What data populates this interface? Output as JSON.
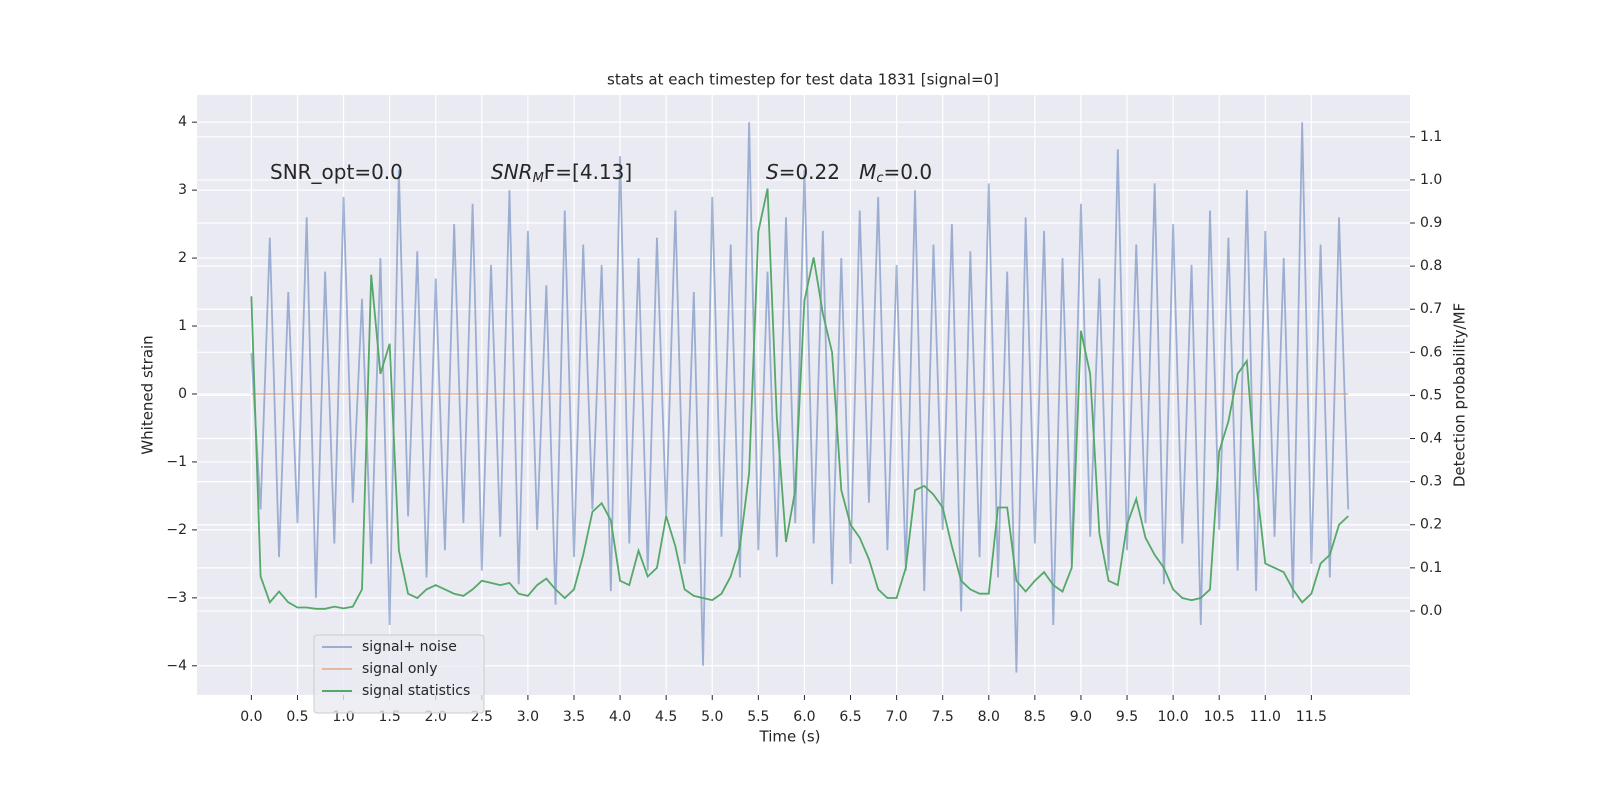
{
  "chart_data": {
    "type": "line",
    "title": "stats at each timestep for test data 1831 [signal=0]",
    "xlabel": "Time (s)",
    "ylabel": "Whitened strain",
    "y2label": "Detection probability/MF",
    "annotations": [
      {
        "parts": [
          "SNR_opt=0.0"
        ]
      },
      {
        "parts": [
          "SNR",
          "M",
          "F=[4.13]"
        ]
      },
      {
        "parts": [
          "S",
          "=0.22   ",
          "M",
          "c",
          "=0.0"
        ]
      }
    ],
    "x": [
      0,
      0.1,
      0.2,
      0.3,
      0.4,
      0.5,
      0.6,
      0.7,
      0.8,
      0.9,
      1,
      1.1,
      1.2,
      1.3,
      1.4,
      1.5,
      1.6,
      1.7,
      1.8,
      1.9,
      2,
      2.1,
      2.2,
      2.3,
      2.4,
      2.5,
      2.6,
      2.7,
      2.8,
      2.9,
      3,
      3.1,
      3.2,
      3.3,
      3.4,
      3.5,
      3.6,
      3.7,
      3.8,
      3.9,
      4,
      4.1,
      4.2,
      4.3,
      4.4,
      4.5,
      4.6,
      4.7,
      4.8,
      4.9,
      5,
      5.1,
      5.2,
      5.3,
      5.4,
      5.5,
      5.6,
      5.7,
      5.8,
      5.9,
      6,
      6.1,
      6.2,
      6.3,
      6.4,
      6.5,
      6.6,
      6.7,
      6.8,
      6.9,
      7,
      7.1,
      7.2,
      7.3,
      7.4,
      7.5,
      7.6,
      7.7,
      7.8,
      7.9,
      8,
      8.1,
      8.2,
      8.3,
      8.4,
      8.5,
      8.6,
      8.7,
      8.8,
      8.9,
      9,
      9.1,
      9.2,
      9.3,
      9.4,
      9.5,
      9.6,
      9.7,
      9.8,
      9.9,
      10,
      10.1,
      10.2,
      10.3,
      10.4,
      10.5,
      10.6,
      10.7,
      10.8,
      10.9,
      11,
      11.1,
      11.2,
      11.3,
      11.4,
      11.5,
      11.6,
      11.7,
      11.8,
      11.9
    ],
    "series": [
      {
        "name": "signal+ noise",
        "color": "#4c72b0",
        "opacity": 0.5,
        "values": [
          0.6,
          -1.7,
          2.3,
          -2.4,
          1.5,
          -1.9,
          2.6,
          -3.0,
          1.8,
          -2.2,
          2.9,
          -1.6,
          1.4,
          -2.5,
          2.0,
          -3.4,
          3.3,
          -1.8,
          2.1,
          -2.7,
          1.7,
          -2.3,
          2.5,
          -1.9,
          2.8,
          -2.6,
          1.9,
          -2.1,
          3.0,
          -2.8,
          2.4,
          -2.0,
          1.6,
          -3.1,
          2.7,
          -2.4,
          2.2,
          -1.7,
          1.9,
          -2.9,
          3.5,
          -2.2,
          2.0,
          -2.6,
          2.3,
          -1.8,
          2.7,
          -2.5,
          1.5,
          -4.0,
          2.9,
          -2.1,
          2.2,
          -2.7,
          4.0,
          -2.3,
          1.8,
          -2.4,
          2.6,
          -1.9,
          3.3,
          -2.2,
          2.4,
          -2.8,
          2.0,
          -2.5,
          2.7,
          -1.6,
          2.9,
          -2.3,
          1.9,
          -2.6,
          3.0,
          -2.9,
          2.2,
          -2.0,
          2.5,
          -3.2,
          2.1,
          -2.4,
          3.1,
          -2.7,
          1.8,
          -4.1,
          2.6,
          -2.2,
          2.4,
          -3.4,
          2.0,
          -2.5,
          2.8,
          -2.1,
          1.7,
          -2.6,
          3.6,
          -2.3,
          2.2,
          -1.9,
          3.1,
          -2.8,
          2.5,
          -2.2,
          1.9,
          -3.4,
          2.7,
          -2.0,
          2.3,
          -2.6,
          3.0,
          -2.9,
          2.4,
          -2.1,
          2.0,
          -3.0,
          4.0,
          -2.5,
          2.2,
          -2.7,
          2.6,
          -1.7
        ]
      },
      {
        "name": "signal only",
        "color": "#dd8452",
        "opacity": 0.5,
        "values": [
          0,
          0,
          0,
          0,
          0,
          0,
          0,
          0,
          0,
          0,
          0,
          0,
          0,
          0,
          0,
          0,
          0,
          0,
          0,
          0,
          0,
          0,
          0,
          0,
          0,
          0,
          0,
          0,
          0,
          0,
          0,
          0,
          0,
          0,
          0,
          0,
          0,
          0,
          0,
          0,
          0,
          0,
          0,
          0,
          0,
          0,
          0,
          0,
          0,
          0,
          0,
          0,
          0,
          0,
          0,
          0,
          0,
          0,
          0,
          0,
          0,
          0,
          0,
          0,
          0,
          0,
          0,
          0,
          0,
          0,
          0,
          0,
          0,
          0,
          0,
          0,
          0,
          0,
          0,
          0,
          0,
          0,
          0,
          0,
          0,
          0,
          0,
          0,
          0,
          0,
          0,
          0,
          0,
          0,
          0,
          0,
          0,
          0,
          0,
          0,
          0,
          0,
          0,
          0,
          0,
          0,
          0,
          0,
          0,
          0,
          0,
          0,
          0,
          0,
          0,
          0,
          0,
          0,
          0,
          0
        ]
      },
      {
        "name": "signal statistics",
        "color": "#55a868",
        "opacity": 1,
        "axis": "y2",
        "values": [
          0.73,
          0.08,
          0.02,
          0.045,
          0.02,
          0.008,
          0.008,
          0.005,
          0.005,
          0.01,
          0.006,
          0.01,
          0.05,
          0.78,
          0.55,
          0.62,
          0.14,
          0.04,
          0.03,
          0.05,
          0.06,
          0.05,
          0.04,
          0.035,
          0.05,
          0.07,
          0.065,
          0.06,
          0.065,
          0.04,
          0.035,
          0.06,
          0.075,
          0.05,
          0.03,
          0.05,
          0.13,
          0.23,
          0.25,
          0.21,
          0.07,
          0.06,
          0.14,
          0.08,
          0.1,
          0.22,
          0.15,
          0.05,
          0.035,
          0.03,
          0.025,
          0.04,
          0.08,
          0.15,
          0.32,
          0.88,
          0.98,
          0.45,
          0.16,
          0.28,
          0.72,
          0.82,
          0.69,
          0.6,
          0.28,
          0.2,
          0.17,
          0.12,
          0.05,
          0.03,
          0.03,
          0.1,
          0.28,
          0.29,
          0.27,
          0.24,
          0.15,
          0.07,
          0.05,
          0.04,
          0.04,
          0.24,
          0.24,
          0.07,
          0.045,
          0.07,
          0.09,
          0.06,
          0.045,
          0.1,
          0.65,
          0.55,
          0.18,
          0.07,
          0.06,
          0.2,
          0.26,
          0.17,
          0.13,
          0.1,
          0.05,
          0.03,
          0.025,
          0.03,
          0.05,
          0.37,
          0.44,
          0.55,
          0.58,
          0.3,
          0.11,
          0.1,
          0.09,
          0.05,
          0.02,
          0.04,
          0.11,
          0.13,
          0.2,
          0.22
        ]
      }
    ],
    "xlim": [
      -0.59,
      12.57
    ],
    "ylim": [
      -4.43,
      4.4
    ],
    "y2lim": [
      -0.195,
      1.197
    ],
    "xticks": [
      {
        "value": 0,
        "label": "0.0"
      },
      {
        "value": 0.5,
        "label": "0.5"
      },
      {
        "value": 1,
        "label": "1.0"
      },
      {
        "value": 1.5,
        "label": "1.5"
      },
      {
        "value": 2,
        "label": "2.0"
      },
      {
        "value": 2.5,
        "label": "2.5"
      },
      {
        "value": 3,
        "label": "3.0"
      },
      {
        "value": 3.5,
        "label": "3.5"
      },
      {
        "value": 4,
        "label": "4.0"
      },
      {
        "value": 4.5,
        "label": "4.5"
      },
      {
        "value": 5,
        "label": "5.0"
      },
      {
        "value": 5.5,
        "label": "5.5"
      },
      {
        "value": 6,
        "label": "6.0"
      },
      {
        "value": 6.5,
        "label": "6.5"
      },
      {
        "value": 7,
        "label": "7.0"
      },
      {
        "value": 7.5,
        "label": "7.5"
      },
      {
        "value": 8,
        "label": "8.0"
      },
      {
        "value": 8.5,
        "label": "8.5"
      },
      {
        "value": 9,
        "label": "9.0"
      },
      {
        "value": 9.5,
        "label": "9.5"
      },
      {
        "value": 10,
        "label": "10.0"
      },
      {
        "value": 10.5,
        "label": "10.5"
      },
      {
        "value": 11,
        "label": "11.0"
      },
      {
        "value": 11.5,
        "label": "11.5"
      }
    ],
    "yticks": [
      {
        "value": -4,
        "label": "−4"
      },
      {
        "value": -3,
        "label": "−3"
      },
      {
        "value": -2,
        "label": "−2"
      },
      {
        "value": -1,
        "label": "−1"
      },
      0,
      1,
      2,
      3,
      4
    ],
    "y2ticks": [
      {
        "value": 0,
        "label": "0.0"
      },
      0.1,
      0.2,
      0.3,
      0.4,
      0.5,
      0.6,
      0.7,
      0.8,
      0.9,
      {
        "value": 1,
        "label": "1.0"
      },
      1.1
    ],
    "grid": true,
    "legend": "lower left"
  }
}
